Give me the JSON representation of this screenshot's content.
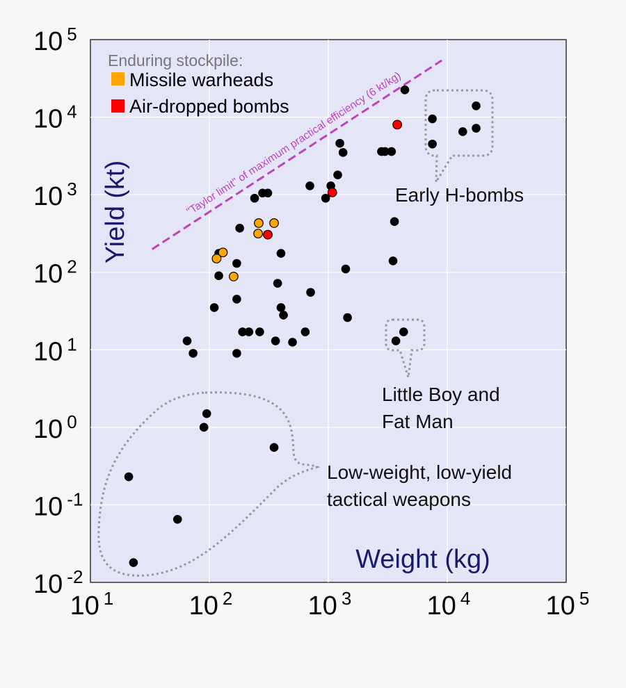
{
  "chart_data": {
    "type": "scatter",
    "xscale": "log",
    "yscale": "log",
    "xlim": [
      10,
      100000
    ],
    "ylim": [
      0.01,
      100000
    ],
    "xlabel": "Weight (kg)",
    "ylabel": "Yield (kt)",
    "x_ticks": [
      {
        "base": "10",
        "exp": "1"
      },
      {
        "base": "10",
        "exp": "2"
      },
      {
        "base": "10",
        "exp": "3"
      },
      {
        "base": "10",
        "exp": "4"
      },
      {
        "base": "10",
        "exp": "5"
      }
    ],
    "y_ticks": [
      {
        "base": "10",
        "exp": "5"
      },
      {
        "base": "10",
        "exp": "4"
      },
      {
        "base": "10",
        "exp": "3"
      },
      {
        "base": "10",
        "exp": "2"
      },
      {
        "base": "10",
        "exp": "1"
      },
      {
        "base": "10",
        "exp": "0"
      },
      {
        "base": "10",
        "exp": "-1"
      },
      {
        "base": "10",
        "exp": "-2"
      }
    ],
    "legend": {
      "title": "Enduring stockpile:",
      "entries": [
        {
          "label": "Missile warheads",
          "color": "#ffa500"
        },
        {
          "label": "Air-dropped bombs",
          "color": "#ff0000"
        }
      ]
    },
    "colors": {
      "plot_background": "#e5e5f8",
      "grid": "#ffffff",
      "general": "#000000",
      "axis_label": "#1a1a6e",
      "taylor_line": "#bb44bb",
      "callout": "#999999"
    },
    "taylor_limit": {
      "label": "\"Taylor limit\" of maximum practical efficiency (6 kt/kg)",
      "kt_per_kg": 6,
      "x_range": [
        33,
        9000
      ]
    },
    "annotations": [
      {
        "text": "Early H-bombs",
        "lines": [
          "Early H-bombs"
        ]
      },
      {
        "text": "Little Boy and Fat Man",
        "lines": [
          "Little Boy and",
          "Fat Man"
        ]
      },
      {
        "text": "Low-weight, low-yield tactical weapons",
        "lines": [
          "Low-weight, low-yield",
          "tactical weapons"
        ]
      }
    ],
    "series": [
      {
        "name": "Weapons",
        "color": "#000000",
        "points": [
          [
            4400,
            22500
          ],
          [
            17500,
            14000
          ],
          [
            7500,
            9500
          ],
          [
            13500,
            6500
          ],
          [
            17500,
            7200
          ],
          [
            7500,
            4500
          ],
          [
            1250,
            4600
          ],
          [
            1330,
            3500
          ],
          [
            2800,
            3600
          ],
          [
            3000,
            3600
          ],
          [
            3400,
            3600
          ],
          [
            1200,
            1800
          ],
          [
            1050,
            1300
          ],
          [
            700,
            1300
          ],
          [
            950,
            900
          ],
          [
            280,
            1050
          ],
          [
            310,
            1050
          ],
          [
            240,
            900
          ],
          [
            180,
            370
          ],
          [
            3600,
            450
          ],
          [
            3500,
            140
          ],
          [
            400,
            175
          ],
          [
            120,
            175
          ],
          [
            170,
            130
          ],
          [
            1400,
            110
          ],
          [
            120,
            90
          ],
          [
            375,
            72
          ],
          [
            170,
            45
          ],
          [
            710,
            55
          ],
          [
            110,
            35
          ],
          [
            400,
            35
          ],
          [
            420,
            28
          ],
          [
            1450,
            26
          ],
          [
            190,
            17
          ],
          [
            215,
            17
          ],
          [
            265,
            17
          ],
          [
            640,
            17
          ],
          [
            4300,
            17
          ],
          [
            3700,
            13
          ],
          [
            360,
            13
          ],
          [
            500,
            12.5
          ],
          [
            65,
            13
          ],
          [
            73,
            9
          ],
          [
            170,
            9
          ],
          [
            95,
            1.5
          ],
          [
            90,
            1
          ],
          [
            350,
            0.55
          ],
          [
            21,
            0.23
          ],
          [
            54,
            0.065
          ],
          [
            23,
            0.018
          ]
        ]
      },
      {
        "name": "Missile warheads",
        "color": "#ffa500",
        "points": [
          [
            260,
            430
          ],
          [
            350,
            430
          ],
          [
            257,
            315
          ],
          [
            130,
            180
          ],
          [
            115,
            150
          ],
          [
            160,
            88
          ]
        ]
      },
      {
        "name": "Air-dropped bombs",
        "color": "#ff0000",
        "points": [
          [
            3800,
            8000
          ],
          [
            1080,
            1070
          ],
          [
            310,
            305
          ]
        ]
      }
    ]
  }
}
